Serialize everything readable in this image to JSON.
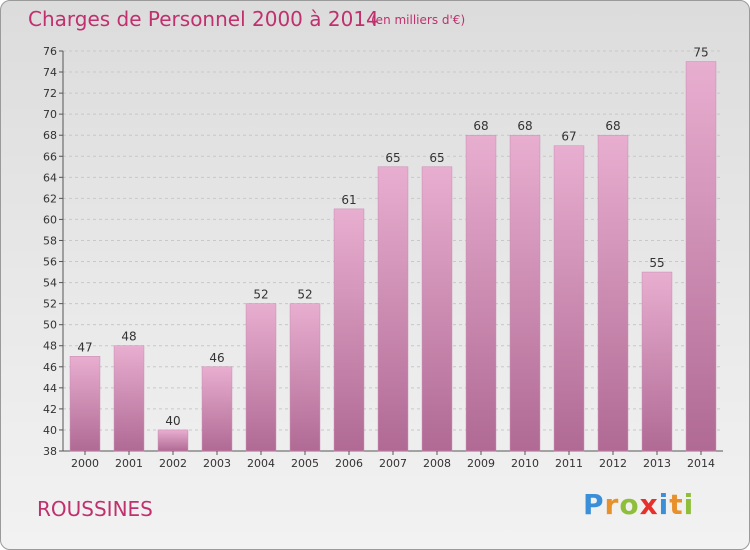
{
  "header": {
    "title": "Charges de Personnel 2000 à 2014",
    "unit": "(en milliers d'€)"
  },
  "footer": {
    "place": "ROUSSINES"
  },
  "logo": {
    "letters": [
      {
        "ch": "P",
        "color": "#3a8fd8"
      },
      {
        "ch": "r",
        "color": "#e8902a"
      },
      {
        "ch": "o",
        "color": "#8fbf3a"
      },
      {
        "ch": "x",
        "color": "#e8302a"
      },
      {
        "ch": "i",
        "color": "#3a8fd8"
      },
      {
        "ch": "t",
        "color": "#e8902a"
      },
      {
        "ch": "i",
        "color": "#8fbf3a"
      }
    ]
  },
  "chart_data": {
    "type": "bar",
    "title": "Charges de Personnel 2000 à 2014",
    "subtitle": "(en milliers d'€)",
    "categories": [
      "2000",
      "2001",
      "2002",
      "2003",
      "2004",
      "2005",
      "2006",
      "2007",
      "2008",
      "2009",
      "2010",
      "2011",
      "2012",
      "2013",
      "2014"
    ],
    "values": [
      47,
      48,
      40,
      46,
      52,
      52,
      61,
      65,
      65,
      68,
      68,
      67,
      68,
      55,
      75
    ],
    "ylim": [
      38,
      76
    ],
    "yticks": [
      38,
      40,
      42,
      44,
      46,
      48,
      50,
      52,
      54,
      56,
      58,
      60,
      62,
      64,
      66,
      68,
      70,
      72,
      74,
      76
    ],
    "grid": true,
    "bar_color": "#e3a3c6"
  }
}
